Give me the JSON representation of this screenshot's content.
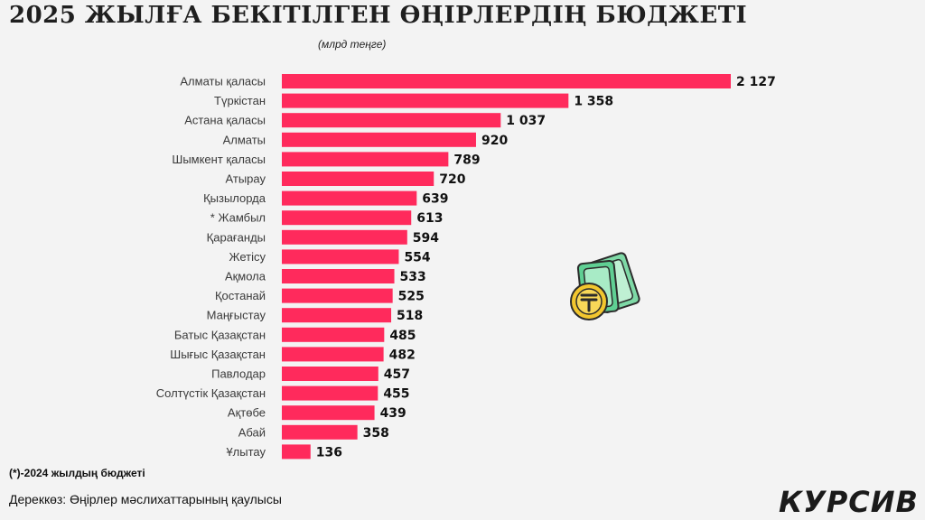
{
  "title": "2025 ЖЫЛҒА БЕКІТІЛГЕН ӨҢІРЛЕРДІҢ БЮДЖЕТІ",
  "subtitle": "(млрд теңге)",
  "footnote": "(*)-2024 жылдың бюджеті",
  "source": "Дереккөз: Өңірлер мәслихаттарының қаулысы",
  "logo_text": "КУРСИВ",
  "icon": "money-coin-icon",
  "colors": {
    "bar": "#ff2a5c",
    "background": "#f3f3f3"
  },
  "chart_data": {
    "type": "bar",
    "orientation": "horizontal",
    "title": "2025 ЖЫЛҒА БЕКІТІЛГЕН ӨҢІРЛЕРДІҢ БЮДЖЕТІ",
    "subtitle": "(млрд теңге)",
    "categories": [
      "Алматы қаласы",
      "Түркістан",
      "Астана қаласы",
      "Алматы",
      "Шымкент қаласы",
      "Атырау",
      "Қызылорда",
      "* Жамбыл",
      "Қарағанды",
      "Жетісу",
      "Ақмола",
      "Қостанай",
      "Маңғыстау",
      "Батыс Қазақстан",
      "Шығыс  Қазақстан",
      "Павлодар",
      "Солтүстік Қазақстан",
      "Ақтөбе",
      "Абай",
      "Ұлытау"
    ],
    "values": [
      2127,
      1358,
      1037,
      920,
      789,
      720,
      639,
      613,
      594,
      554,
      533,
      525,
      518,
      485,
      482,
      457,
      455,
      439,
      358,
      136
    ],
    "value_labels": [
      "2 127",
      "1 358",
      "1 037",
      "920",
      "789",
      "720",
      "639",
      "613",
      "594",
      "554",
      "533",
      "525",
      "518",
      "485",
      "482",
      "457",
      "455",
      "439",
      "358",
      "136"
    ],
    "xlim": [
      0,
      2127
    ],
    "grid": false,
    "legend": "none"
  }
}
